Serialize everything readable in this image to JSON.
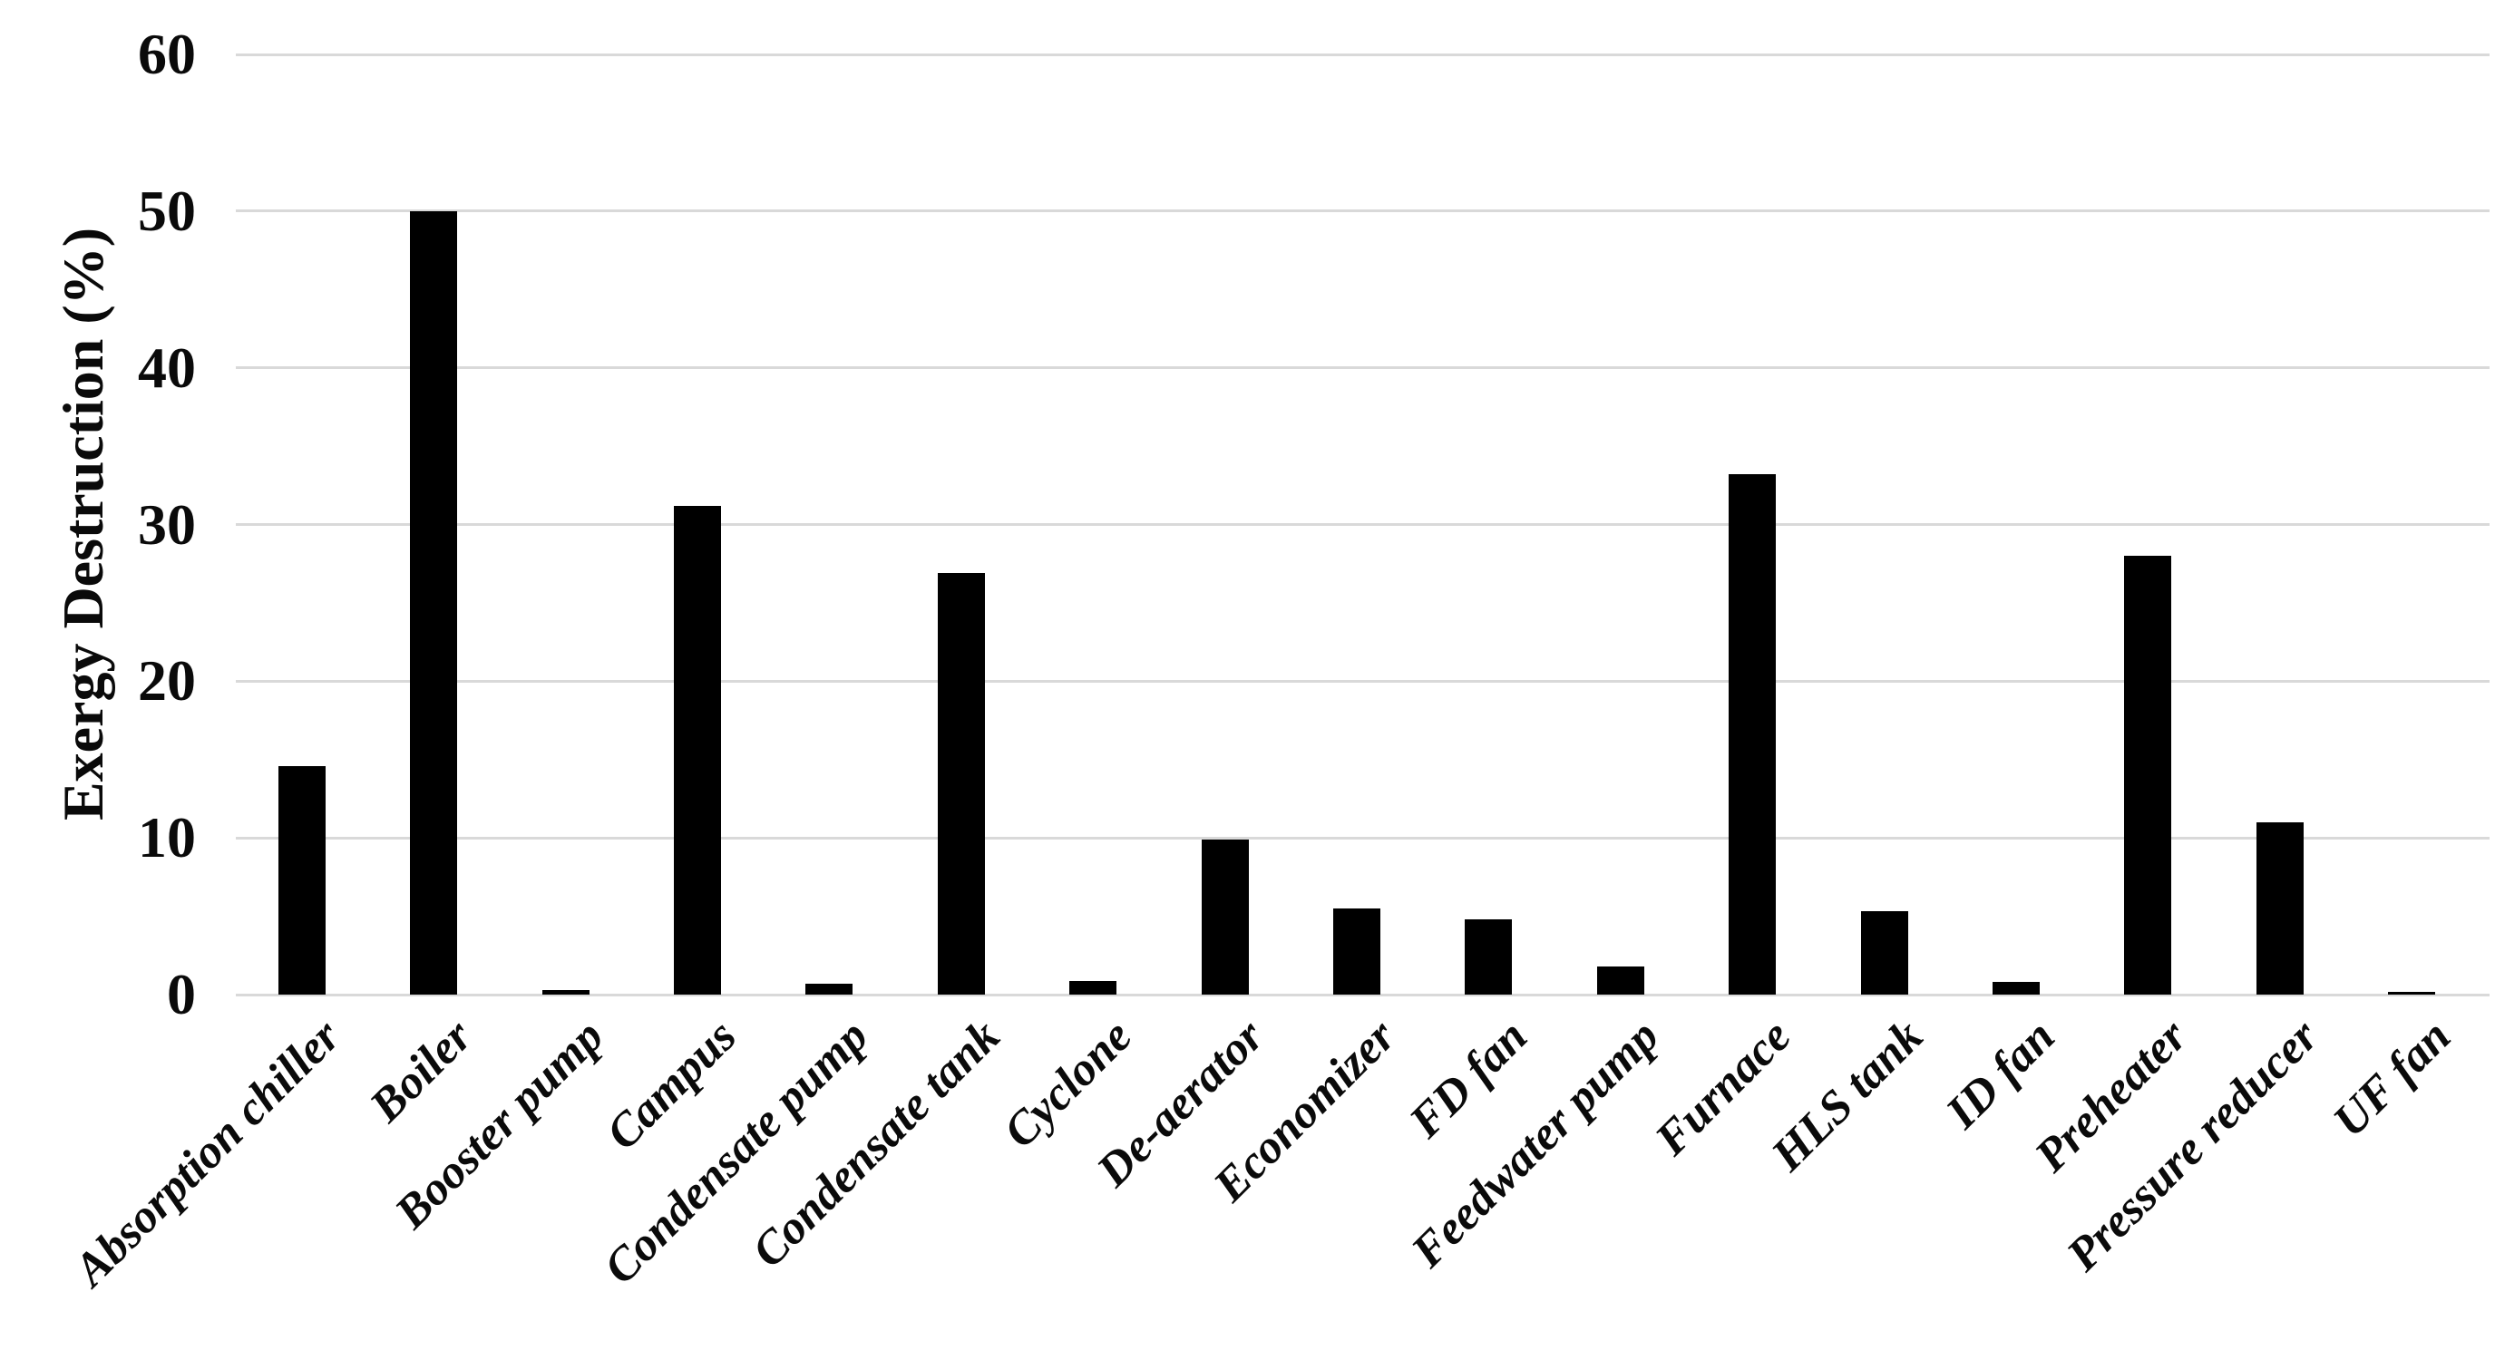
{
  "chart_data": {
    "type": "bar",
    "ylabel": "Exergy Destruction (%)",
    "ylim": [
      0,
      60
    ],
    "yticks": [
      0,
      10,
      20,
      30,
      40,
      50,
      60
    ],
    "grid": true,
    "legend": "none",
    "bar_color": "#000000",
    "gridline_color": "#d9d9d9",
    "background_color": "#ffffff",
    "categories": [
      "Absorption chiller",
      "Boiler",
      "Booster pump",
      "Campus",
      "Condensate pump",
      "Condensate tank",
      "Cyclone",
      "De-aerator",
      "Economizer",
      "FD fan",
      "Feedwater pump",
      "Furnace",
      "HLS tank",
      "ID fan",
      "Preheater",
      "Pressure reducer",
      "UF fan"
    ],
    "values": [
      14.6,
      50.0,
      0.3,
      31.2,
      0.7,
      26.9,
      0.85,
      9.9,
      5.5,
      4.8,
      1.8,
      33.2,
      5.3,
      0.8,
      28.0,
      11.0,
      0.15
    ]
  }
}
